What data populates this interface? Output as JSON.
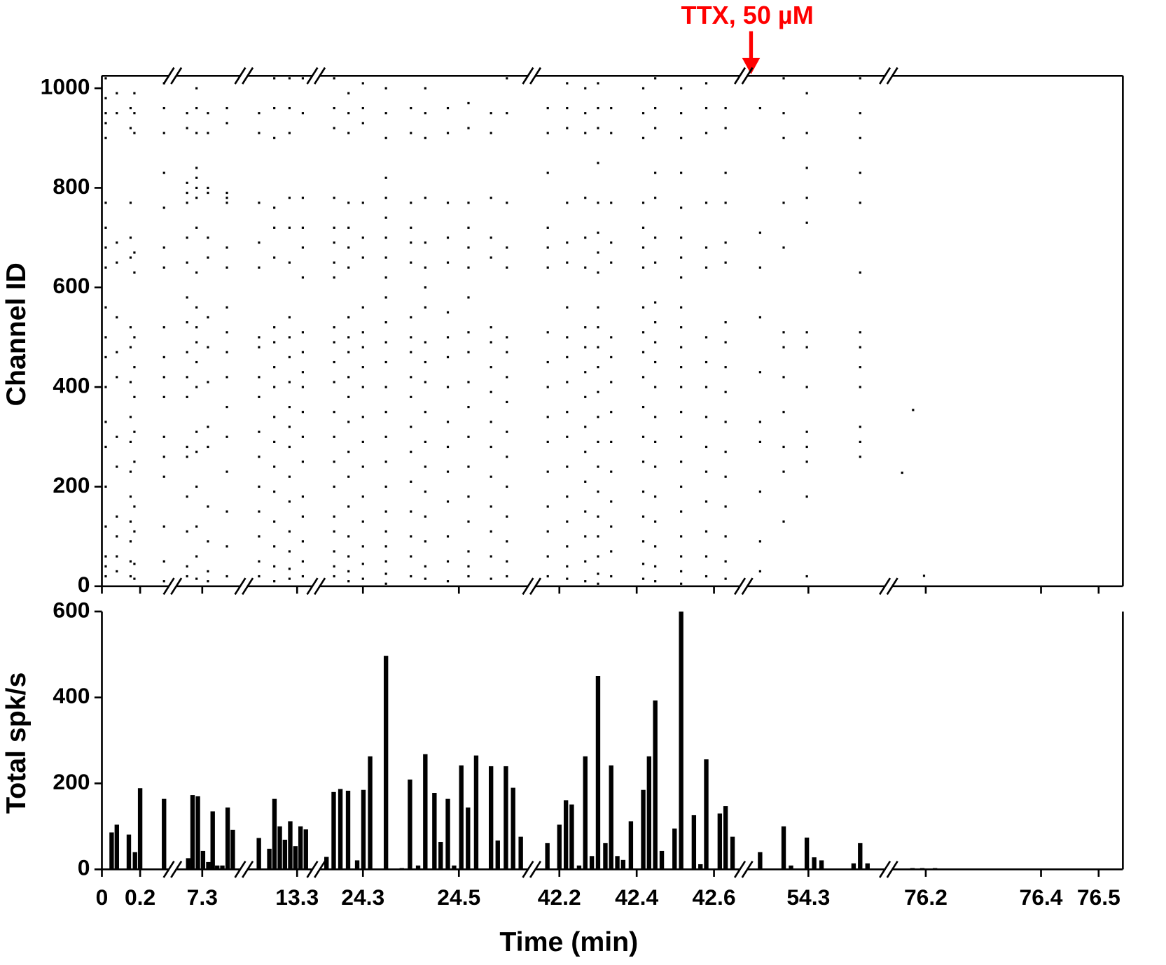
{
  "chart_data": [
    {
      "type": "scatter",
      "ylabel": "Channel ID",
      "annotation": "TTX, 50 µM",
      "color": "#000000",
      "annotation_color": "#ff0000",
      "ylim": [
        0,
        1025
      ],
      "yticks": [
        0,
        200,
        400,
        600,
        800,
        1000
      ],
      "columns": [
        {
          "x": 0.02,
          "channels": [
            20,
            40,
            60,
            120,
            200,
            280,
            330,
            400,
            460,
            500,
            560,
            640,
            680,
            720,
            770,
            900,
            930,
            950,
            980,
            1020
          ]
        },
        {
          "x": 0.078,
          "channels": [
            30,
            60,
            100,
            140,
            240,
            300,
            420,
            470,
            540,
            650,
            690,
            950,
            990
          ]
        },
        {
          "x": 0.15,
          "channels": [
            20,
            50,
            90,
            130,
            180,
            230,
            290,
            340,
            410,
            480,
            520,
            660,
            700,
            770,
            920,
            960
          ]
        },
        {
          "x": 0.17,
          "channels": [
            15,
            45,
            110,
            160,
            250,
            310,
            380,
            440,
            500,
            630,
            670,
            910,
            950,
            990
          ]
        },
        {
          "x": 0.325,
          "channels": [
            10,
            50,
            120,
            220,
            260,
            300,
            380,
            420,
            460,
            520,
            640,
            680,
            760,
            830,
            910,
            960,
            1010
          ]
        },
        {
          "x": 7.22,
          "channels": [
            20,
            40,
            110,
            180,
            260,
            280,
            380,
            420,
            470,
            530,
            580,
            650,
            700,
            770,
            790,
            810,
            920,
            950
          ]
        },
        {
          "x": 7.27,
          "channels": [
            15,
            60,
            120,
            200,
            270,
            310,
            400,
            450,
            490,
            520,
            560,
            630,
            720,
            780,
            800,
            820,
            840,
            910,
            960,
            1000
          ]
        },
        {
          "x": 7.33,
          "channels": [
            10,
            30,
            90,
            160,
            280,
            320,
            410,
            480,
            540,
            660,
            700,
            790,
            800,
            910,
            950
          ]
        },
        {
          "x": 7.43,
          "channels": [
            20,
            80,
            150,
            230,
            300,
            360,
            420,
            470,
            510,
            560,
            640,
            680,
            770,
            780,
            790,
            930,
            960
          ]
        },
        {
          "x": 13.1,
          "channels": [
            20,
            50,
            100,
            150,
            200,
            260,
            310,
            380,
            420,
            480,
            500,
            640,
            690,
            770,
            910,
            950
          ]
        },
        {
          "x": 13.18,
          "channels": [
            10,
            40,
            80,
            130,
            190,
            240,
            290,
            340,
            400,
            440,
            490,
            520,
            660,
            720,
            760,
            900,
            960,
            1020
          ]
        },
        {
          "x": 13.26,
          "channels": [
            15,
            35,
            70,
            110,
            170,
            220,
            280,
            320,
            360,
            410,
            460,
            500,
            540,
            650,
            720,
            780,
            910,
            960,
            1020
          ]
        },
        {
          "x": 13.33,
          "channels": [
            20,
            50,
            90,
            140,
            180,
            250,
            300,
            350,
            400,
            430,
            470,
            510,
            620,
            680,
            720,
            780,
            950,
            1020
          ]
        },
        {
          "x": 24.24,
          "channels": [
            20,
            40,
            70,
            110,
            140,
            200,
            250,
            300,
            350,
            410,
            450,
            490,
            520,
            620,
            650,
            690,
            720,
            780,
            920,
            960,
            1020
          ]
        },
        {
          "x": 24.27,
          "channels": [
            10,
            30,
            60,
            100,
            160,
            220,
            270,
            330,
            380,
            420,
            470,
            500,
            540,
            640,
            680,
            720,
            770,
            910,
            950,
            990
          ]
        },
        {
          "x": 24.3,
          "channels": [
            15,
            45,
            80,
            130,
            180,
            240,
            290,
            340,
            400,
            440,
            480,
            510,
            560,
            660,
            700,
            770,
            930,
            960,
            1010
          ]
        },
        {
          "x": 24.348,
          "channels": [
            5,
            25,
            50,
            80,
            110,
            150,
            200,
            250,
            300,
            350,
            400,
            450,
            490,
            530,
            580,
            620,
            660,
            700,
            740,
            780,
            820,
            900,
            950,
            1000
          ]
        },
        {
          "x": 24.4,
          "channels": [
            20,
            60,
            100,
            150,
            210,
            270,
            320,
            380,
            420,
            470,
            500,
            540,
            650,
            690,
            720,
            770,
            910,
            960
          ]
        },
        {
          "x": 24.43,
          "channels": [
            15,
            40,
            90,
            140,
            190,
            240,
            290,
            350,
            410,
            450,
            490,
            560,
            600,
            640,
            690,
            780,
            900,
            950,
            1000
          ]
        },
        {
          "x": 24.477,
          "channels": [
            10,
            50,
            100,
            170,
            230,
            280,
            330,
            400,
            460,
            500,
            550,
            650,
            700,
            770,
            910,
            960
          ]
        },
        {
          "x": 24.52,
          "channels": [
            20,
            40,
            70,
            130,
            180,
            240,
            300,
            360,
            410,
            470,
            510,
            580,
            640,
            680,
            720,
            770,
            920,
            970
          ]
        },
        {
          "x": 24.567,
          "channels": [
            15,
            60,
            110,
            160,
            220,
            280,
            330,
            390,
            440,
            490,
            520,
            660,
            700,
            780,
            910,
            950
          ]
        },
        {
          "x": 24.6,
          "channels": [
            20,
            50,
            90,
            140,
            200,
            260,
            310,
            370,
            420,
            470,
            500,
            640,
            680,
            770,
            950,
            1020
          ]
        },
        {
          "x": 42.17,
          "channels": [
            20,
            60,
            110,
            160,
            230,
            290,
            340,
            400,
            450,
            510,
            640,
            680,
            720,
            830,
            910,
            960
          ]
        },
        {
          "x": 42.22,
          "channels": [
            15,
            40,
            80,
            130,
            180,
            240,
            300,
            350,
            410,
            460,
            500,
            560,
            650,
            690,
            770,
            920,
            960,
            1010
          ]
        },
        {
          "x": 42.267,
          "channels": [
            10,
            50,
            100,
            150,
            210,
            270,
            320,
            380,
            430,
            480,
            520,
            640,
            700,
            780,
            910,
            950,
            1000
          ]
        },
        {
          "x": 42.3,
          "channels": [
            5,
            25,
            60,
            100,
            140,
            190,
            240,
            290,
            340,
            390,
            440,
            480,
            520,
            560,
            630,
            670,
            710,
            770,
            850,
            920,
            960,
            1010
          ]
        },
        {
          "x": 42.334,
          "channels": [
            20,
            70,
            120,
            170,
            230,
            290,
            350,
            410,
            460,
            500,
            650,
            690,
            770,
            910,
            960
          ]
        },
        {
          "x": 42.417,
          "channels": [
            15,
            45,
            90,
            140,
            190,
            250,
            300,
            360,
            420,
            470,
            510,
            560,
            640,
            680,
            720,
            770,
            900,
            950,
            1000
          ]
        },
        {
          "x": 42.448,
          "channels": [
            10,
            40,
            80,
            130,
            180,
            240,
            290,
            340,
            400,
            450,
            490,
            530,
            570,
            650,
            700,
            780,
            830,
            920,
            960,
            1020
          ]
        },
        {
          "x": 42.515,
          "channels": [
            5,
            30,
            60,
            100,
            150,
            200,
            250,
            300,
            350,
            400,
            440,
            480,
            520,
            560,
            620,
            660,
            700,
            760,
            830,
            900,
            950,
            1000
          ]
        },
        {
          "x": 42.58,
          "channels": [
            20,
            60,
            110,
            170,
            230,
            280,
            340,
            400,
            450,
            500,
            640,
            680,
            770,
            910,
            960,
            1010
          ]
        },
        {
          "x": 42.63,
          "channels": [
            15,
            50,
            100,
            160,
            220,
            270,
            330,
            390,
            440,
            490,
            530,
            650,
            690,
            770,
            830,
            920,
            960
          ]
        },
        {
          "x": 54.175,
          "channels": [
            30,
            90,
            190,
            290,
            330,
            430,
            540,
            640,
            710,
            960
          ]
        },
        {
          "x": 54.236,
          "channels": [
            130,
            230,
            280,
            350,
            420,
            480,
            510,
            680,
            770,
            900,
            950,
            1020
          ]
        },
        {
          "x": 54.296,
          "channels": [
            20,
            180,
            250,
            280,
            310,
            400,
            480,
            510,
            730,
            780,
            840,
            910,
            990
          ]
        },
        {
          "x": 54.434,
          "channels": [
            260,
            290,
            320,
            400,
            440,
            480,
            510,
            630,
            770,
            830,
            900,
            950,
            1020
          ]
        },
        {
          "x": 76.159,
          "channels": [
            228
          ]
        },
        {
          "x": 76.178,
          "channels": [
            354
          ]
        },
        {
          "x": 76.197,
          "channels": [
            21
          ]
        }
      ]
    },
    {
      "type": "bar",
      "ylabel": "Total spk/s",
      "xlabel": "Time (min)",
      "color": "#000000",
      "ylim": [
        0,
        600
      ],
      "yticks": [
        0,
        200,
        400,
        600
      ],
      "x_segments": [
        {
          "xlim": [
            0,
            0.35
          ],
          "xticks": [
            0,
            0.2
          ]
        },
        {
          "xlim": [
            7.163,
            7.5
          ],
          "xticks": [
            7.3
          ]
        },
        {
          "xlim": [
            13.04,
            13.38
          ],
          "xticks": [
            13.3
          ]
        },
        {
          "xlim": [
            24.21,
            24.644
          ],
          "xticks": [
            24.3,
            24.5
          ]
        },
        {
          "xlim": [
            42.138,
            42.667
          ],
          "xticks": [
            42.2,
            42.4,
            42.6
          ]
        },
        {
          "xlim": [
            54.142,
            54.498
          ],
          "xticks": [
            54.3
          ]
        },
        {
          "xlim": [
            76.142,
            76.542
          ],
          "xticks": [
            76.2,
            76.4,
            76.5
          ]
        }
      ],
      "x": [
        0.051,
        0.078,
        0.141,
        0.173,
        0.2,
        0.231,
        0.325,
        7.226,
        7.249,
        7.277,
        7.304,
        7.332,
        7.355,
        7.379,
        7.406,
        7.434,
        7.461,
        13.099,
        13.154,
        13.181,
        13.209,
        13.236,
        13.264,
        13.291,
        13.318,
        13.346,
        24.224,
        24.239,
        24.253,
        24.269,
        24.288,
        24.301,
        24.315,
        24.348,
        24.381,
        24.398,
        24.415,
        24.43,
        24.449,
        24.462,
        24.477,
        24.49,
        24.505,
        24.519,
        24.536,
        24.567,
        24.581,
        24.598,
        24.613,
        24.629,
        42.169,
        42.2,
        42.217,
        42.232,
        42.251,
        42.267,
        42.284,
        42.3,
        42.319,
        42.334,
        42.35,
        42.365,
        42.385,
        42.417,
        42.432,
        42.448,
        42.465,
        42.498,
        42.515,
        42.548,
        42.565,
        42.58,
        42.615,
        42.63,
        42.648,
        54.175,
        54.236,
        54.255,
        54.296,
        54.315,
        54.334,
        54.417,
        54.434,
        54.453,
        76.177,
        76.194,
        76.216
      ],
      "values": [
        86,
        104,
        81,
        40,
        189,
        2,
        164,
        26,
        173,
        170,
        43,
        17,
        135,
        9,
        9,
        144,
        92,
        73,
        48,
        164,
        100,
        69,
        112,
        54,
        100,
        93,
        29,
        180,
        187,
        183,
        21,
        185,
        263,
        497,
        3,
        209,
        9,
        268,
        178,
        64,
        164,
        9,
        242,
        144,
        265,
        240,
        67,
        240,
        190,
        76,
        61,
        104,
        161,
        151,
        9,
        263,
        31,
        450,
        61,
        242,
        31,
        22,
        112,
        185,
        263,
        393,
        43,
        95,
        600,
        126,
        12,
        256,
        130,
        147,
        76,
        40,
        100,
        9,
        74,
        28,
        21,
        14,
        61,
        14,
        3,
        3,
        3
      ]
    }
  ]
}
